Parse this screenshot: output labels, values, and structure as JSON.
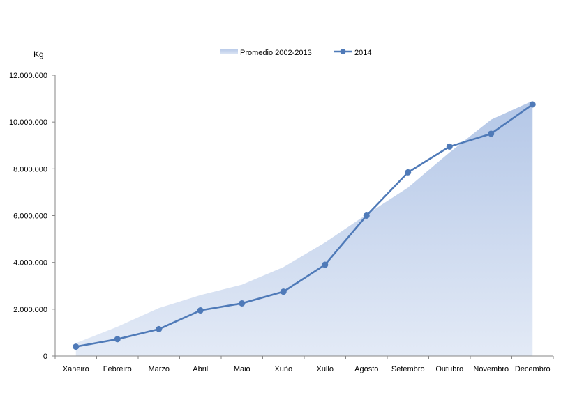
{
  "chart_data": {
    "type": "area",
    "ylabel": "Kg",
    "ylim": [
      0,
      12000000
    ],
    "yticks": [
      0,
      2000000,
      4000000,
      6000000,
      8000000,
      10000000,
      12000000
    ],
    "ytick_labels": [
      "0",
      "2.000.000",
      "4.000.000",
      "6.000.000",
      "8.000.000",
      "10.000.000",
      "12.000.000"
    ],
    "categories": [
      "Xaneiro",
      "Febreiro",
      "Marzo",
      "Abril",
      "Maio",
      "Xuño",
      "Xullo",
      "Agosto",
      "Setembro",
      "Outubro",
      "Novembro",
      "Decembro"
    ],
    "legend_position": "top",
    "series": [
      {
        "name": "Promedio 2002-2013",
        "kind": "area",
        "color": "#b4c7e7",
        "values": [
          550000,
          1250000,
          2050000,
          2600000,
          3050000,
          3800000,
          4850000,
          6050000,
          7200000,
          8700000,
          10100000,
          10900000
        ]
      },
      {
        "name": "2014",
        "kind": "line",
        "color": "#4f7ab8",
        "values": [
          400000,
          720000,
          1150000,
          1950000,
          2250000,
          2750000,
          3900000,
          6000000,
          7850000,
          8950000,
          9500000,
          10750000
        ]
      }
    ]
  }
}
